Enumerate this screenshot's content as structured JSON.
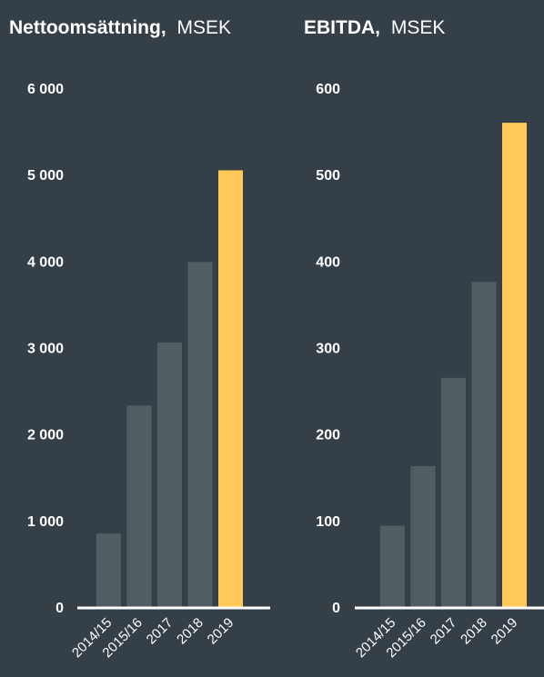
{
  "colors": {
    "background": "#343f47",
    "bar": "#525c63",
    "highlight": "#ffc857",
    "axis": "#ffffff",
    "text": "#ffffff"
  },
  "chart_data": [
    {
      "type": "bar",
      "title": "Nettoomsättning,",
      "unit": "MSEK",
      "categories": [
        "2014/15",
        "2015/16",
        "2017",
        "2018",
        "2019"
      ],
      "values": [
        850,
        2330,
        3060,
        3990,
        5050
      ],
      "highlight_index": 4,
      "ylim": [
        0,
        6000
      ],
      "yticks": [
        "0",
        "1 000",
        "2 000",
        "3 000",
        "4 000",
        "5 000",
        "6 000"
      ],
      "ytick_values": [
        0,
        1000,
        2000,
        3000,
        4000,
        5000,
        6000
      ],
      "grid": false
    },
    {
      "type": "bar",
      "title": "EBITDA,",
      "unit": "MSEK",
      "categories": [
        "2014/15",
        "2015/16",
        "2017",
        "2018",
        "2019"
      ],
      "values": [
        94,
        163,
        265,
        376,
        560
      ],
      "highlight_index": 4,
      "ylim": [
        0,
        600
      ],
      "yticks": [
        "0",
        "100",
        "200",
        "300",
        "400",
        "500",
        "600"
      ],
      "ytick_values": [
        0,
        100,
        200,
        300,
        400,
        500,
        600
      ],
      "grid": false
    }
  ]
}
